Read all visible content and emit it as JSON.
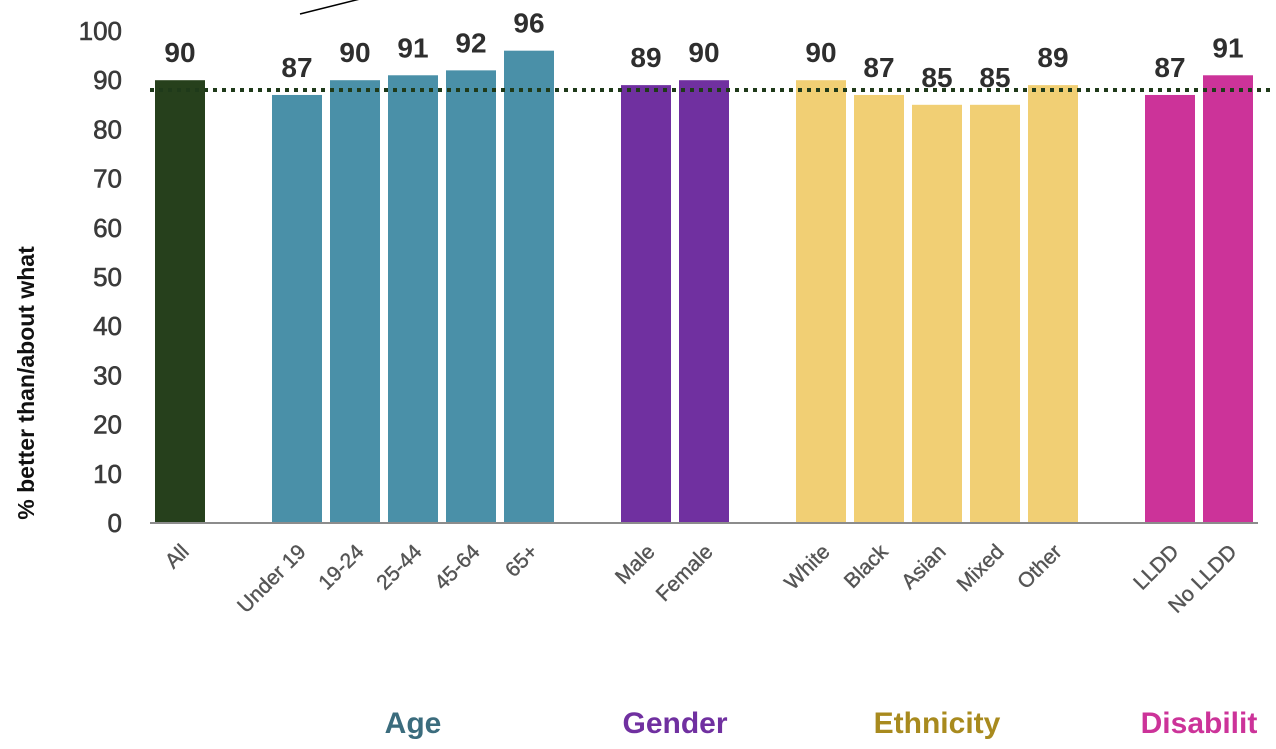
{
  "chart_data": {
    "type": "bar",
    "ylabel": "% better than/about what",
    "ylim": [
      0,
      100
    ],
    "yticks": [
      0,
      10,
      20,
      30,
      40,
      50,
      60,
      70,
      80,
      90,
      100
    ],
    "reference_line": {
      "value": 88,
      "style": "dotted",
      "color": "#1f3a1a"
    },
    "categories": [
      "All",
      "Under 19",
      "19-24",
      "25-44",
      "45-64",
      "65+",
      "Male",
      "Female",
      "White",
      "Black",
      "Asian",
      "Mixed",
      "Other",
      "LLDD",
      "No LLDD"
    ],
    "values": [
      90,
      87,
      90,
      91,
      92,
      96,
      89,
      90,
      90,
      87,
      85,
      85,
      89,
      87,
      91
    ],
    "groups": [
      {
        "name": "",
        "color": "#26401c",
        "categories": [
          "All"
        ]
      },
      {
        "name": "Age",
        "color": "#4a90a8",
        "label_color": "#3b6c7d",
        "categories": [
          "Under 19",
          "19-24",
          "25-44",
          "45-64",
          "65+"
        ]
      },
      {
        "name": "Gender",
        "color": "#7030a0",
        "label_color": "#7030a0",
        "categories": [
          "Male",
          "Female"
        ]
      },
      {
        "name": "Ethnicity",
        "color": "#f1cf74",
        "label_color": "#a88a1e",
        "categories": [
          "White",
          "Black",
          "Asian",
          "Mixed",
          "Other"
        ]
      },
      {
        "name": "Disabilit",
        "color": "#cc3399",
        "label_color": "#cc3399",
        "categories": [
          "LLDD",
          "No LLDD"
        ]
      }
    ],
    "grid": false,
    "legend": "none"
  }
}
